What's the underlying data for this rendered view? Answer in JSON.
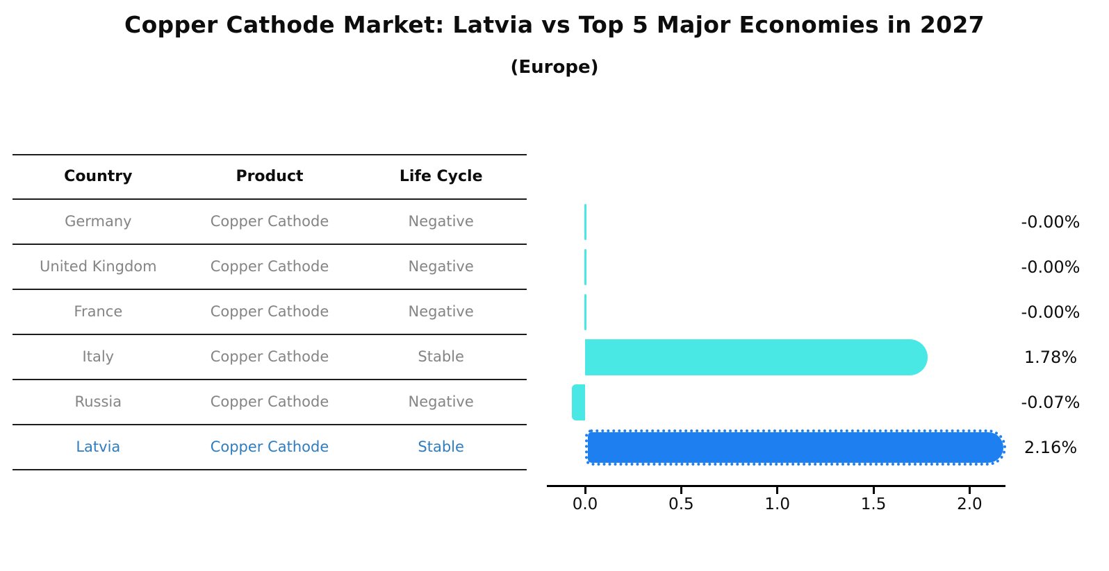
{
  "title": "Copper Cathode Market: Latvia vs Top 5 Major Economies in 2027",
  "subtitle": "(Europe)",
  "table": {
    "columns": [
      "Country",
      "Product",
      "Life Cycle"
    ],
    "rows": [
      {
        "country": "Germany",
        "product": "Copper Cathode",
        "life_cycle": "Negative",
        "highlight": false
      },
      {
        "country": "United Kingdom",
        "product": "Copper Cathode",
        "life_cycle": "Negative",
        "highlight": false
      },
      {
        "country": "France",
        "product": "Copper Cathode",
        "life_cycle": "Negative",
        "highlight": false
      },
      {
        "country": "Italy",
        "product": "Copper Cathode",
        "life_cycle": "Stable",
        "highlight": false
      },
      {
        "country": "Russia",
        "product": "Copper Cathode",
        "life_cycle": "Negative",
        "highlight": false
      },
      {
        "country": "Latvia",
        "product": "Copper Cathode",
        "life_cycle": "Stable",
        "highlight": true
      }
    ]
  },
  "chart_data": {
    "type": "bar",
    "orientation": "horizontal",
    "categories": [
      "Germany",
      "United Kingdom",
      "France",
      "Italy",
      "Russia",
      "Latvia"
    ],
    "values": [
      -0.0,
      -0.0,
      -0.0,
      1.78,
      -0.07,
      2.16
    ],
    "value_labels": [
      "-0.00%",
      "-0.00%",
      "-0.00%",
      "1.78%",
      "-0.07%",
      "2.16%"
    ],
    "xticks": [
      0.0,
      0.5,
      1.0,
      1.5,
      2.0
    ],
    "xtick_labels": [
      "0.0",
      "0.5",
      "1.0",
      "1.5",
      "2.0"
    ],
    "xlim": [
      -0.2,
      2.19
    ],
    "ylabel": "",
    "xlabel": "",
    "grid": false,
    "legend": false,
    "highlight_index": 5,
    "bar_color_default": "#4ae8e4",
    "bar_color_highlight": "#1e80f0",
    "highlight_text_color": "#2e7dc1",
    "row_text_color": "#848484",
    "axis_color": "#000000"
  }
}
